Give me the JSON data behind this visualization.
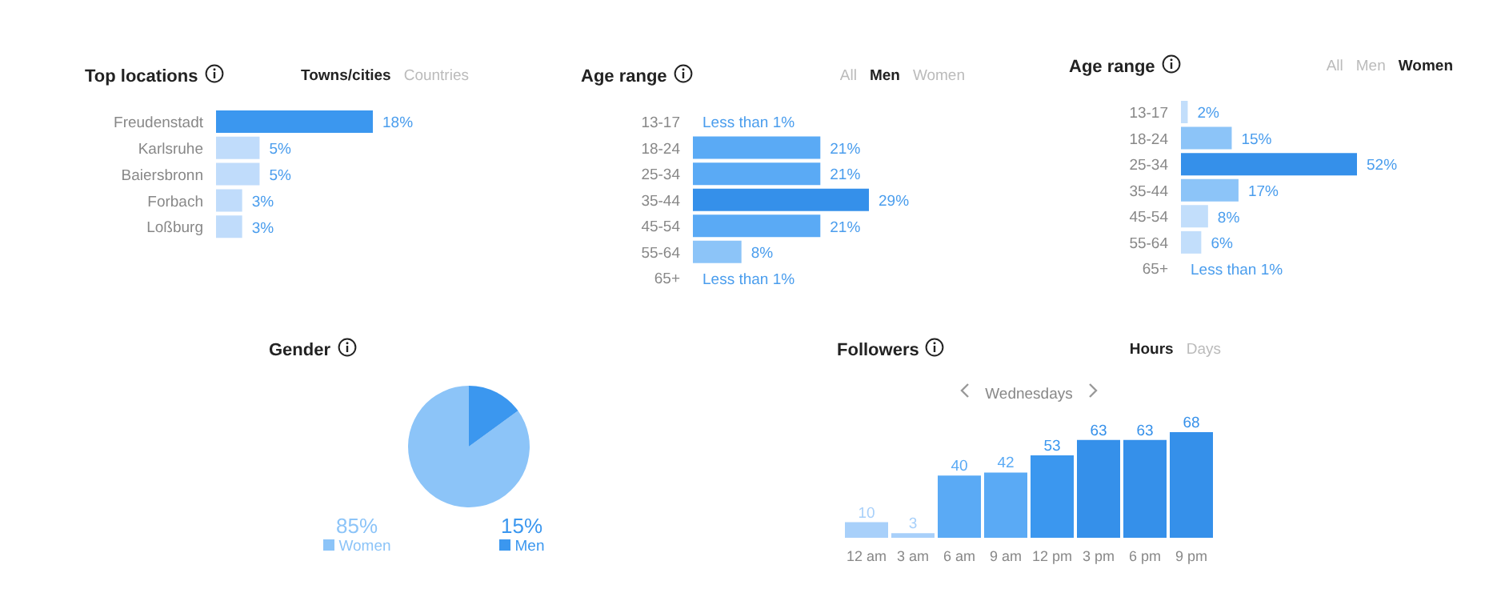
{
  "chart_data": [
    {
      "type": "bar",
      "orientation": "horizontal",
      "title": "Top locations",
      "annotations": [
        "Towns/cities",
        "Countries"
      ],
      "categories": [
        "Freudenstadt",
        "Karlsruhe",
        "Baiersbronn",
        "Forbach",
        "Loßburg"
      ],
      "values": [
        18,
        5,
        5,
        3,
        3
      ],
      "value_labels": [
        "18%",
        "5%",
        "5%",
        "3%",
        "3%"
      ],
      "colors": [
        "#3b97ef",
        "#c0dcfb",
        "#c0dcfb",
        "#c0dcfb",
        "#c0dcfb"
      ]
    },
    {
      "type": "bar",
      "orientation": "horizontal",
      "title": "Age range",
      "annotations": [
        "All",
        "Men",
        "Women"
      ],
      "categories": [
        "13-17",
        "18-24",
        "25-34",
        "35-44",
        "45-54",
        "55-64",
        "65+"
      ],
      "values": [
        null,
        21,
        21,
        29,
        21,
        8,
        null
      ],
      "value_labels": [
        "Less than 1%",
        "21%",
        "21%",
        "29%",
        "21%",
        "8%",
        "Less than 1%"
      ],
      "colors": [
        "#c2defb",
        "#5aaaf5",
        "#5aaaf5",
        "#3590ea",
        "#5aaaf5",
        "#8cc4f8",
        "#c2defb"
      ]
    },
    {
      "type": "bar",
      "orientation": "horizontal",
      "title": "Age range",
      "annotations": [
        "All",
        "Men",
        "Women"
      ],
      "categories": [
        "13-17",
        "18-24",
        "25-34",
        "35-44",
        "45-54",
        "55-64",
        "65+"
      ],
      "values": [
        2,
        15,
        52,
        17,
        8,
        6,
        null
      ],
      "value_labels": [
        "2%",
        "15%",
        "52%",
        "17%",
        "8%",
        "6%",
        "Less than 1%"
      ],
      "colors": [
        "#c2defb",
        "#8cc4f8",
        "#3590ea",
        "#8cc4f8",
        "#c2defb",
        "#c2defb",
        "#c2defb"
      ]
    },
    {
      "type": "pie",
      "title": "Gender",
      "categories": [
        "Women",
        "Men"
      ],
      "values": [
        85,
        15
      ],
      "value_labels": [
        "85%",
        "15%"
      ],
      "legend": "bottom",
      "colors": [
        "#8cc4f8",
        "#3b97ef"
      ]
    },
    {
      "type": "bar",
      "title": "Followers",
      "subtitle": "Wednesdays",
      "annotations": [
        "Hours",
        "Days"
      ],
      "categories": [
        "12 am",
        "3 am",
        "6 am",
        "9 am",
        "12 pm",
        "3 pm",
        "6 pm",
        "9 pm"
      ],
      "values": [
        10,
        3,
        40,
        42,
        53,
        63,
        63,
        68
      ],
      "data_labels": true,
      "colors": [
        "#a8d0fa",
        "#a8d0fa",
        "#5aaaf5",
        "#5aaaf5",
        "#3b97ef",
        "#3590ea",
        "#3590ea",
        "#3590ea"
      ]
    }
  ]
}
